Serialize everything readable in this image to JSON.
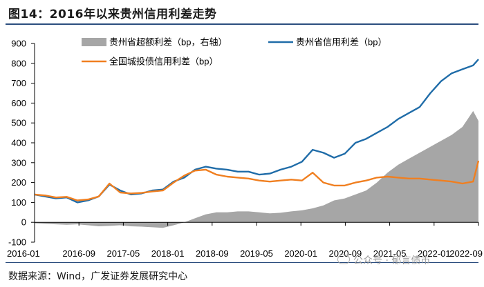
{
  "header": {
    "title": "图14：2016年以来贵州信用利差走势"
  },
  "footer": {
    "source": "数据来源：Wind，广发证券发展研究中心",
    "watermark": "公众号 · 郁言债市"
  },
  "chart_data": {
    "type": "line",
    "x_tick_labels": [
      "2016-01",
      "2016-09",
      "2017-05",
      "2018-01",
      "2018-09",
      "2019-05",
      "2020-01",
      "2020-09",
      "2021-05",
      "2022-01",
      "2022-09"
    ],
    "ylim": [
      -100,
      900
    ],
    "y_ticks": [
      -100,
      0,
      100,
      200,
      300,
      400,
      500,
      600,
      700,
      800,
      900
    ],
    "y_tick_labels": [
      "-100",
      "0",
      "100",
      "200",
      "300",
      "400",
      "500",
      "600",
      "700",
      "800",
      "900"
    ],
    "grid": false,
    "legend_position": "top",
    "x": [
      "2016-01",
      "2016-03",
      "2016-05",
      "2016-07",
      "2016-09",
      "2016-11",
      "2017-01",
      "2017-03",
      "2017-05",
      "2017-07",
      "2017-09",
      "2017-11",
      "2018-01",
      "2018-03",
      "2018-05",
      "2018-07",
      "2018-09",
      "2018-11",
      "2019-01",
      "2019-03",
      "2019-05",
      "2019-07",
      "2019-09",
      "2019-11",
      "2020-01",
      "2020-03",
      "2020-05",
      "2020-07",
      "2020-09",
      "2020-11",
      "2021-01",
      "2021-03",
      "2021-05",
      "2021-07",
      "2021-09",
      "2021-11",
      "2022-01",
      "2022-03",
      "2022-05",
      "2022-07",
      "2022-09",
      "2022-11",
      "2022-12"
    ],
    "series": [
      {
        "name": "贵州省超额利差（bp，右轴）",
        "type": "area",
        "color": "#a6a6a6",
        "values": [
          -5,
          -8,
          -10,
          -12,
          -10,
          -15,
          -20,
          -18,
          -15,
          -20,
          -22,
          -25,
          -28,
          -15,
          0,
          20,
          40,
          50,
          50,
          55,
          55,
          50,
          45,
          48,
          55,
          60,
          70,
          85,
          110,
          120,
          140,
          160,
          200,
          250,
          290,
          320,
          350,
          380,
          410,
          440,
          480,
          560,
          510
        ]
      },
      {
        "name": "贵州省信用利差（bp）",
        "type": "line",
        "color": "#1f6ca8",
        "values": [
          140,
          130,
          120,
          125,
          100,
          110,
          130,
          190,
          160,
          140,
          145,
          160,
          165,
          205,
          225,
          265,
          280,
          270,
          265,
          255,
          255,
          240,
          245,
          265,
          280,
          305,
          365,
          350,
          325,
          345,
          400,
          420,
          450,
          480,
          520,
          550,
          580,
          650,
          710,
          750,
          770,
          790,
          820
        ]
      },
      {
        "name": "全国城投债信用利差（bp）",
        "type": "line",
        "color": "#f07f20",
        "values": [
          140,
          135,
          125,
          128,
          110,
          115,
          130,
          195,
          150,
          145,
          148,
          155,
          160,
          200,
          235,
          260,
          265,
          240,
          230,
          225,
          220,
          210,
          205,
          210,
          215,
          210,
          250,
          200,
          185,
          185,
          200,
          210,
          225,
          230,
          225,
          220,
          220,
          215,
          210,
          205,
          195,
          205,
          310
        ]
      }
    ]
  }
}
